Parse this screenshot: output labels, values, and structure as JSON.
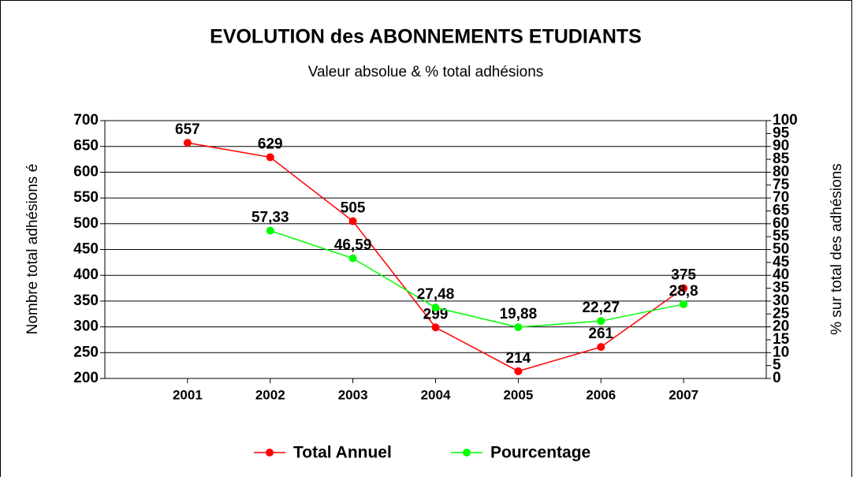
{
  "chart_data": {
    "type": "line",
    "title": "EVOLUTION des ABONNEMENTS ETUDIANTS",
    "subtitle": "Valeur absolue & % total adhésions",
    "y_label": "Nombre total adhésions é",
    "y2_label": "% sur total des adhésions",
    "categories": [
      "2001",
      "2002",
      "2003",
      "2004",
      "2005",
      "2006",
      "2007"
    ],
    "series": [
      {
        "name": "Total Annuel",
        "color": "#ff0000",
        "values": [
          657,
          629,
          505,
          299,
          214,
          261,
          375
        ]
      },
      {
        "name": "Pourcentage",
        "color": "#00ff00",
        "axis": "y2",
        "values": [
          null,
          57.33,
          46.59,
          27.48,
          19.88,
          22.27,
          28.8
        ],
        "value_labels": [
          null,
          "57,33",
          "46,59",
          "27,48",
          "19,88",
          "22,27",
          "28,8"
        ]
      }
    ],
    "ylim": [
      200,
      700
    ],
    "yticks": [
      200,
      250,
      300,
      350,
      400,
      450,
      500,
      550,
      600,
      650,
      700
    ],
    "y2lim": [
      0,
      100
    ],
    "y2ticks": [
      0,
      5,
      10,
      15,
      20,
      25,
      30,
      35,
      40,
      45,
      50,
      55,
      60,
      65,
      70,
      75,
      80,
      85,
      90,
      95,
      100
    ],
    "grid": true,
    "legend": "bottom"
  }
}
